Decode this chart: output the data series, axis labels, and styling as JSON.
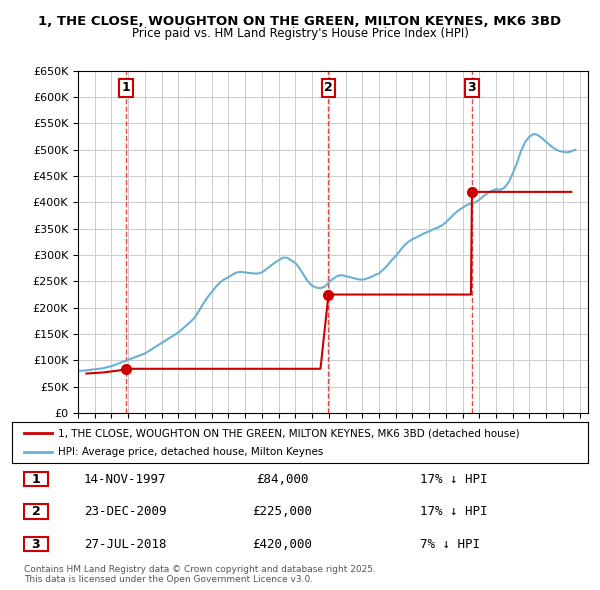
{
  "title_line1": "1, THE CLOSE, WOUGHTON ON THE GREEN, MILTON KEYNES, MK6 3BD",
  "title_line2": "Price paid vs. HM Land Registry's House Price Index (HPI)",
  "ylabel": "",
  "xlim_start": 1995.0,
  "xlim_end": 2025.5,
  "ylim_min": 0,
  "ylim_max": 650000,
  "sale_dates": [
    1997.87,
    2009.98,
    2018.56
  ],
  "sale_prices": [
    84000,
    225000,
    420000
  ],
  "sale_labels": [
    "1",
    "2",
    "3"
  ],
  "sale_date_strs": [
    "14-NOV-1997",
    "23-DEC-2009",
    "27-JUL-2018"
  ],
  "sale_price_strs": [
    "£84,000",
    "£225,000",
    "£420,000"
  ],
  "sale_hpi_strs": [
    "17% ↓ HPI",
    "17% ↓ HPI",
    "7% ↓ HPI"
  ],
  "line_color_price": "#cc0000",
  "line_color_hpi": "#6ab0d4",
  "vline_color": "#cc0000",
  "grid_color": "#cccccc",
  "background_color": "#ffffff",
  "legend_label_price": "1, THE CLOSE, WOUGHTON ON THE GREEN, MILTON KEYNES, MK6 3BD (detached house)",
  "legend_label_hpi": "HPI: Average price, detached house, Milton Keynes",
  "footnote": "Contains HM Land Registry data © Crown copyright and database right 2025.\nThis data is licensed under the Open Government Licence v3.0.",
  "hpi_years": [
    1995.0,
    1995.25,
    1995.5,
    1995.75,
    1996.0,
    1996.25,
    1996.5,
    1996.75,
    1997.0,
    1997.25,
    1997.5,
    1997.75,
    1998.0,
    1998.25,
    1998.5,
    1998.75,
    1999.0,
    1999.25,
    1999.5,
    1999.75,
    2000.0,
    2000.25,
    2000.5,
    2000.75,
    2001.0,
    2001.25,
    2001.5,
    2001.75,
    2002.0,
    2002.25,
    2002.5,
    2002.75,
    2003.0,
    2003.25,
    2003.5,
    2003.75,
    2004.0,
    2004.25,
    2004.5,
    2004.75,
    2005.0,
    2005.25,
    2005.5,
    2005.75,
    2006.0,
    2006.25,
    2006.5,
    2006.75,
    2007.0,
    2007.25,
    2007.5,
    2007.75,
    2008.0,
    2008.25,
    2008.5,
    2008.75,
    2009.0,
    2009.25,
    2009.5,
    2009.75,
    2010.0,
    2010.25,
    2010.5,
    2010.75,
    2011.0,
    2011.25,
    2011.5,
    2011.75,
    2012.0,
    2012.25,
    2012.5,
    2012.75,
    2013.0,
    2013.25,
    2013.5,
    2013.75,
    2014.0,
    2014.25,
    2014.5,
    2014.75,
    2015.0,
    2015.25,
    2015.5,
    2015.75,
    2016.0,
    2016.25,
    2016.5,
    2016.75,
    2017.0,
    2017.25,
    2017.5,
    2017.75,
    2018.0,
    2018.25,
    2018.5,
    2018.75,
    2019.0,
    2019.25,
    2019.5,
    2019.75,
    2020.0,
    2020.25,
    2020.5,
    2020.75,
    2021.0,
    2021.25,
    2021.5,
    2021.75,
    2022.0,
    2022.25,
    2022.5,
    2022.75,
    2023.0,
    2023.25,
    2023.5,
    2023.75,
    2024.0,
    2024.25,
    2024.5,
    2024.75
  ],
  "hpi_values": [
    80000,
    80500,
    81000,
    82000,
    83000,
    84000,
    85000,
    87000,
    89000,
    92000,
    95000,
    98000,
    101000,
    104000,
    107000,
    110000,
    113000,
    118000,
    123000,
    128000,
    133000,
    138000,
    143000,
    148000,
    153000,
    160000,
    167000,
    174000,
    182000,
    195000,
    208000,
    220000,
    230000,
    240000,
    248000,
    254000,
    258000,
    263000,
    267000,
    268000,
    267000,
    266000,
    265000,
    265000,
    267000,
    273000,
    279000,
    285000,
    290000,
    295000,
    295000,
    290000,
    285000,
    275000,
    262000,
    250000,
    242000,
    238000,
    237000,
    240000,
    248000,
    255000,
    260000,
    262000,
    260000,
    258000,
    256000,
    254000,
    253000,
    255000,
    258000,
    262000,
    265000,
    272000,
    280000,
    290000,
    298000,
    308000,
    318000,
    325000,
    330000,
    334000,
    338000,
    342000,
    345000,
    349000,
    352000,
    356000,
    362000,
    370000,
    378000,
    385000,
    390000,
    395000,
    398000,
    400000,
    405000,
    412000,
    418000,
    422000,
    425000,
    424000,
    428000,
    438000,
    455000,
    475000,
    498000,
    515000,
    525000,
    530000,
    528000,
    522000,
    515000,
    508000,
    502000,
    498000,
    496000,
    495000,
    497000,
    500000
  ],
  "price_years": [
    1995.5,
    1996.0,
    1996.5,
    1997.0,
    1997.5,
    1997.87,
    1998.0,
    1998.5,
    1999.0,
    1999.5,
    2000.0,
    2000.5,
    2001.0,
    2001.5,
    2002.0,
    2002.5,
    2003.0,
    2003.5,
    2004.0,
    2004.5,
    2005.0,
    2005.5,
    2006.0,
    2006.5,
    2007.0,
    2007.5,
    2008.0,
    2008.5,
    2009.0,
    2009.5,
    2009.98,
    2010.0,
    2010.5,
    2011.0,
    2011.5,
    2012.0,
    2012.5,
    2013.0,
    2013.5,
    2014.0,
    2014.5,
    2015.0,
    2015.5,
    2016.0,
    2016.5,
    2017.0,
    2017.5,
    2018.0,
    2018.5,
    2018.56,
    2019.0,
    2019.5,
    2020.0,
    2020.5,
    2021.0,
    2021.5,
    2022.0,
    2022.5,
    2023.0,
    2023.5,
    2024.0,
    2024.5
  ],
  "price_values": [
    75000,
    76000,
    77000,
    79000,
    81000,
    84000,
    84000,
    84000,
    84000,
    84000,
    84000,
    84000,
    84000,
    84000,
    84000,
    84000,
    84000,
    84000,
    84000,
    84000,
    84000,
    84000,
    84000,
    84000,
    84000,
    84000,
    84000,
    84000,
    84000,
    84000,
    225000,
    225000,
    225000,
    225000,
    225000,
    225000,
    225000,
    225000,
    225000,
    225000,
    225000,
    225000,
    225000,
    225000,
    225000,
    225000,
    225000,
    225000,
    225000,
    420000,
    420000,
    420000,
    420000,
    420000,
    420000,
    420000,
    420000,
    420000,
    420000,
    420000,
    420000,
    420000
  ]
}
